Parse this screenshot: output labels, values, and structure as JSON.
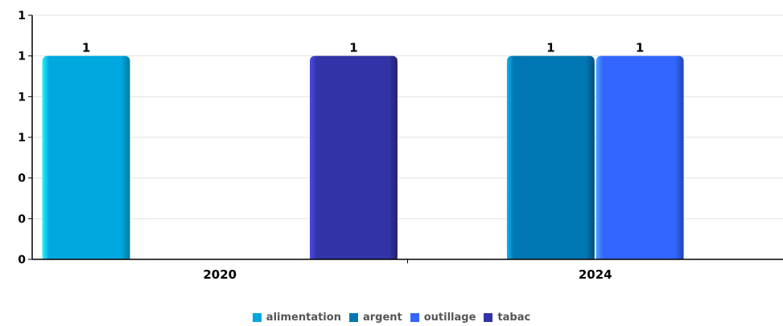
{
  "chart_data": {
    "type": "bar",
    "categories": [
      "2020",
      "2024"
    ],
    "series": [
      {
        "name": "alimentation",
        "color": "#00A8E0",
        "values": [
          1,
          0
        ]
      },
      {
        "name": "argent",
        "color": "#0077B3",
        "values": [
          0,
          1
        ]
      },
      {
        "name": "outillage",
        "color": "#3366FF",
        "values": [
          0,
          1
        ]
      },
      {
        "name": "tabac",
        "color": "#3333A8",
        "values": [
          1,
          0
        ]
      }
    ],
    "data_labels": [
      {
        "series": "alimentation",
        "category": "2020",
        "text": "1"
      },
      {
        "series": "tabac",
        "category": "2020",
        "text": "1"
      },
      {
        "series": "argent",
        "category": "2024",
        "text": "1"
      },
      {
        "series": "outillage",
        "category": "2024",
        "text": "1"
      }
    ],
    "yticks": [
      {
        "value": 0,
        "label": "0"
      },
      {
        "value": 0.2,
        "label": "0"
      },
      {
        "value": 0.4,
        "label": "0"
      },
      {
        "value": 0.6,
        "label": "1"
      },
      {
        "value": 0.8,
        "label": "1"
      },
      {
        "value": 1.0,
        "label": "1"
      },
      {
        "value": 1.2,
        "label": "1"
      }
    ],
    "ylim": [
      0,
      1.2
    ],
    "grid": true,
    "legend_position": "bottom-center",
    "title": "",
    "xlabel": "",
    "ylabel": ""
  }
}
